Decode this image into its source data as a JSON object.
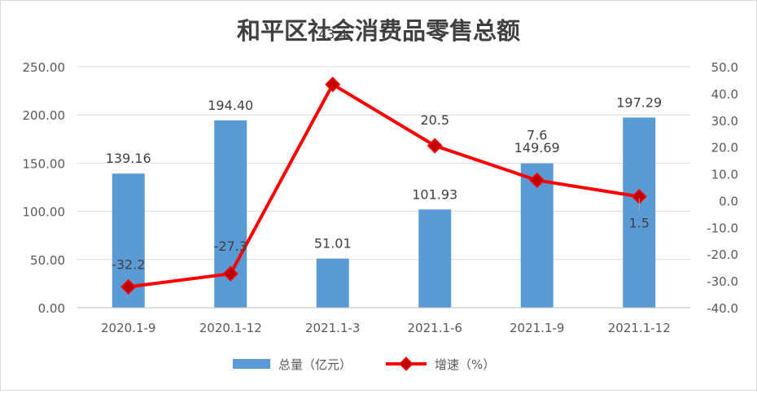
{
  "chart_data": {
    "type": "bar+line",
    "title": "和平区社会消费品零售总额",
    "categories": [
      "2020.1-9",
      "2020.1-12",
      "2021.1-3",
      "2021.1-6",
      "2021.1-9",
      "2021.1-12"
    ],
    "series": [
      {
        "name": "总量（亿元）",
        "type": "bar",
        "axis": "left",
        "color": "#5b9bd5",
        "values": [
          139.16,
          194.4,
          51.01,
          101.93,
          149.69,
          197.29
        ],
        "labels": [
          "139.16",
          "194.40",
          "51.01",
          "101.93",
          "149.69",
          "197.29"
        ]
      },
      {
        "name": "增速（%）",
        "type": "line",
        "axis": "right",
        "color": "#ff0000",
        "marker_color": "#c00000",
        "values": [
          -32.2,
          -27.3,
          43.4,
          20.5,
          7.6,
          1.5
        ],
        "labels": [
          "-32.2",
          "-27.3",
          "43.4",
          "20.5",
          "7.6",
          "1.5"
        ]
      }
    ],
    "y_left": {
      "range": [
        0,
        250
      ],
      "ticks": [
        "0.00",
        "50.00",
        "100.00",
        "150.00",
        "200.00",
        "250.00"
      ]
    },
    "y_right": {
      "range": [
        -40,
        50
      ],
      "ticks": [
        "-40.0",
        "-30.0",
        "-20.0",
        "-10.0",
        "0.0",
        "10.0",
        "20.0",
        "30.0",
        "40.0",
        "50.0"
      ]
    },
    "grid": true,
    "legend": "bottom"
  }
}
